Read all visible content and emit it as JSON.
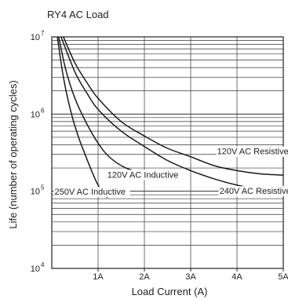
{
  "chart_data": {
    "type": "line",
    "title": "RY4 AC Load",
    "xlabel": "Load Current (A)",
    "ylabel": "Life (number of operating cycles)",
    "xlim": [
      0,
      5
    ],
    "ylim": [
      10000,
      10000000
    ],
    "y_scale": "log",
    "grid": true,
    "x_ticks": [
      {
        "value": 1,
        "label": "1A"
      },
      {
        "value": 2,
        "label": "2A"
      },
      {
        "value": 3,
        "label": "3A"
      },
      {
        "value": 4,
        "label": "4A"
      },
      {
        "value": 5,
        "label": "5A"
      }
    ],
    "y_ticks": [
      {
        "value": 10000,
        "base": "10",
        "exp": "4"
      },
      {
        "value": 100000,
        "base": "10",
        "exp": "5"
      },
      {
        "value": 1000000,
        "base": "10",
        "exp": "6"
      },
      {
        "value": 10000000,
        "base": "10",
        "exp": "7"
      }
    ],
    "series": [
      {
        "name": "120V AC Resistive",
        "label_at": {
          "x": 3.57,
          "y": 300000
        },
        "points": [
          [
            0.25,
            10000000
          ],
          [
            0.5,
            4600000
          ],
          [
            0.75,
            2600000
          ],
          [
            1.0,
            1600000
          ],
          [
            1.5,
            800000
          ],
          [
            2.0,
            520000
          ],
          [
            2.5,
            360000
          ],
          [
            3.0,
            280000
          ],
          [
            3.5,
            215000
          ],
          [
            4.0,
            185000
          ],
          [
            4.5,
            168000
          ],
          [
            5.0,
            162000
          ]
        ]
      },
      {
        "name": "240V AC Resistive",
        "label_at": {
          "x": 3.62,
          "y": 92000
        },
        "points": [
          [
            0.2,
            10000000
          ],
          [
            0.5,
            3500000
          ],
          [
            0.75,
            1900000
          ],
          [
            1.0,
            1150000
          ],
          [
            1.5,
            600000
          ],
          [
            2.0,
            380000
          ],
          [
            2.5,
            250000
          ],
          [
            3.0,
            185000
          ],
          [
            3.5,
            145000
          ],
          [
            4.0,
            120000
          ],
          [
            4.5,
            105000
          ],
          [
            5.0,
            95000
          ]
        ]
      },
      {
        "name": "120V AC Inductive",
        "label_at": {
          "x": 1.2,
          "y": 150000
        },
        "points": [
          [
            0.15,
            10000000
          ],
          [
            0.3,
            3800000
          ],
          [
            0.5,
            1600000
          ],
          [
            0.75,
            760000
          ],
          [
            1.0,
            420000
          ],
          [
            1.25,
            275000
          ],
          [
            1.6,
            200000
          ],
          [
            2.0,
            170000
          ]
        ]
      },
      {
        "name": "250V AC Inductive",
        "label_at": {
          "x": 0.06,
          "y": 90000
        },
        "points": [
          [
            0.12,
            10000000
          ],
          [
            0.25,
            3000000
          ],
          [
            0.4,
            1150000
          ],
          [
            0.55,
            560000
          ],
          [
            0.7,
            320000
          ],
          [
            0.85,
            190000
          ],
          [
            1.0,
            120000
          ],
          [
            1.2,
            82000
          ]
        ]
      }
    ]
  }
}
